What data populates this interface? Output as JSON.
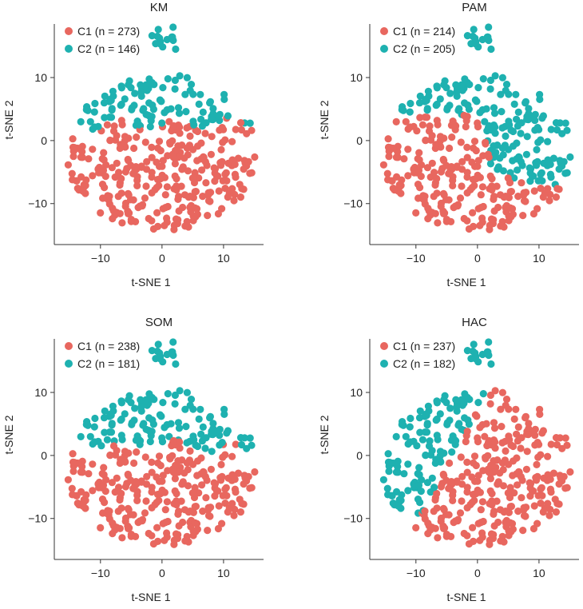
{
  "colors": {
    "c1": "#E8675F",
    "c2": "#1EB1B0",
    "axis": "#333333"
  },
  "chart_data": [
    {
      "type": "scatter",
      "title": "KM",
      "xlabel": "t-SNE 1",
      "ylabel": "t-SNE 2",
      "xlim": [
        -17.5,
        16.5
      ],
      "ylim": [
        -16.5,
        18.5
      ],
      "xticks": [
        -10,
        0,
        10
      ],
      "yticks": [
        -10,
        0,
        10
      ],
      "xtick_labels": [
        "−10",
        "0",
        "10"
      ],
      "ytick_labels": [
        "−10",
        "0",
        "10"
      ],
      "legend_position": "top-left",
      "grid": false,
      "series": [
        {
          "name": "C1 (n = 273)",
          "count": 273
        },
        {
          "name": "C2 (n = 146)",
          "count": 146
        }
      ],
      "assignment": {
        "rule": "y_threshold",
        "threshold": 2.5
      }
    },
    {
      "type": "scatter",
      "title": "PAM",
      "xlabel": "t-SNE 1",
      "ylabel": "t-SNE 2",
      "xlim": [
        -17.5,
        16.5
      ],
      "ylim": [
        -16.5,
        18.5
      ],
      "xticks": [
        -10,
        0,
        10
      ],
      "yticks": [
        -10,
        0,
        10
      ],
      "xtick_labels": [
        "−10",
        "0",
        "10"
      ],
      "ytick_labels": [
        "−10",
        "0",
        "10"
      ],
      "legend_position": "top-left",
      "grid": false,
      "series": [
        {
          "name": "C1 (n = 214)",
          "count": 214
        },
        {
          "name": "C2 (n = 205)",
          "count": 205
        }
      ],
      "assignment": {
        "rule": "diagonal",
        "threshold": 0.5
      }
    },
    {
      "type": "scatter",
      "title": "SOM",
      "xlabel": "t-SNE 1",
      "ylabel": "t-SNE 2",
      "xlim": [
        -17.5,
        16.5
      ],
      "ylim": [
        -16.5,
        18.5
      ],
      "xticks": [
        -10,
        0,
        10
      ],
      "yticks": [
        -10,
        0,
        10
      ],
      "xtick_labels": [
        "−10",
        "0",
        "10"
      ],
      "ytick_labels": [
        "−10",
        "0",
        "10"
      ],
      "legend_position": "top-left",
      "grid": false,
      "series": [
        {
          "name": "C1 (n = 238)",
          "count": 238
        },
        {
          "name": "C2 (n = 181)",
          "count": 181
        }
      ],
      "assignment": {
        "rule": "y_threshold",
        "threshold": 1.2
      }
    },
    {
      "type": "scatter",
      "title": "HAC",
      "xlabel": "t-SNE 1",
      "ylabel": "t-SNE 2",
      "xlim": [
        -17.5,
        16.5
      ],
      "ylim": [
        -16.5,
        18.5
      ],
      "xticks": [
        -10,
        0,
        10
      ],
      "yticks": [
        -10,
        0,
        10
      ],
      "xtick_labels": [
        "−10",
        "0",
        "10"
      ],
      "ytick_labels": [
        "−10",
        "0",
        "10"
      ],
      "legend_position": "top-left",
      "grid": false,
      "series": [
        {
          "name": "C1 (n = 237)",
          "count": 237
        },
        {
          "name": "C2 (n = 182)",
          "count": 182
        }
      ],
      "assignment": {
        "rule": "left_diagonal",
        "threshold": 0.5
      }
    }
  ]
}
